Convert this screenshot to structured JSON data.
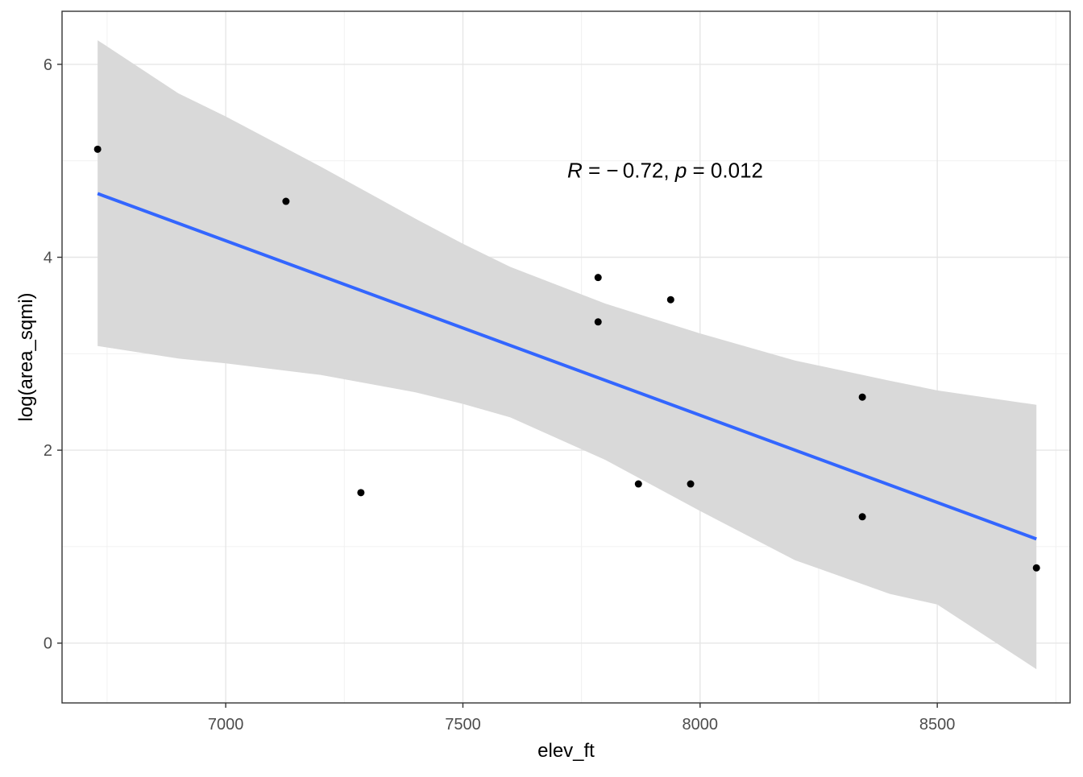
{
  "chart_data": {
    "type": "scatter",
    "title": "",
    "xlabel": "elev_ft",
    "ylabel": "log(area_sqmi)",
    "xlim": [
      6655,
      8780
    ],
    "ylim": [
      -0.62,
      6.55
    ],
    "x_ticks": [
      7000,
      7500,
      8000,
      8500
    ],
    "x_tick_labels": [
      "7000",
      "7500",
      "8000",
      "8500"
    ],
    "y_ticks": [
      0,
      2,
      4,
      6
    ],
    "y_tick_labels": [
      "0",
      "2",
      "4",
      "6"
    ],
    "grid": true,
    "legend": "none",
    "points": {
      "x": [
        6730,
        7127,
        7285,
        7785,
        7785,
        7870,
        7938,
        7980,
        8342,
        8342,
        8709
      ],
      "y": [
        5.12,
        4.58,
        1.56,
        3.79,
        3.33,
        1.65,
        3.56,
        1.65,
        2.55,
        1.31,
        0.78
      ],
      "color": "#000000"
    },
    "regression": {
      "method": "lm",
      "x": [
        6730,
        8709
      ],
      "y": [
        4.66,
        1.08
      ],
      "line_color": "#3366FF",
      "ci_band": {
        "fill": "#d9d9d9",
        "x": [
          6730,
          6900,
          7000,
          7200,
          7400,
          7500,
          7600,
          7800,
          8000,
          8200,
          8400,
          8500,
          8709
        ],
        "lower": [
          3.08,
          2.95,
          2.9,
          2.78,
          2.6,
          2.48,
          2.34,
          1.9,
          1.37,
          0.86,
          0.51,
          0.4,
          -0.27
        ],
        "upper": [
          6.25,
          5.7,
          5.46,
          4.94,
          4.4,
          4.14,
          3.9,
          3.52,
          3.21,
          2.93,
          2.72,
          2.62,
          2.47
        ]
      }
    },
    "annotation": {
      "r_symbol": "R",
      "r_equals": " = − 0.72, ",
      "p_symbol": "p",
      "p_equals": " = 0.012",
      "at_x": 7720,
      "at_y": 4.9
    }
  }
}
